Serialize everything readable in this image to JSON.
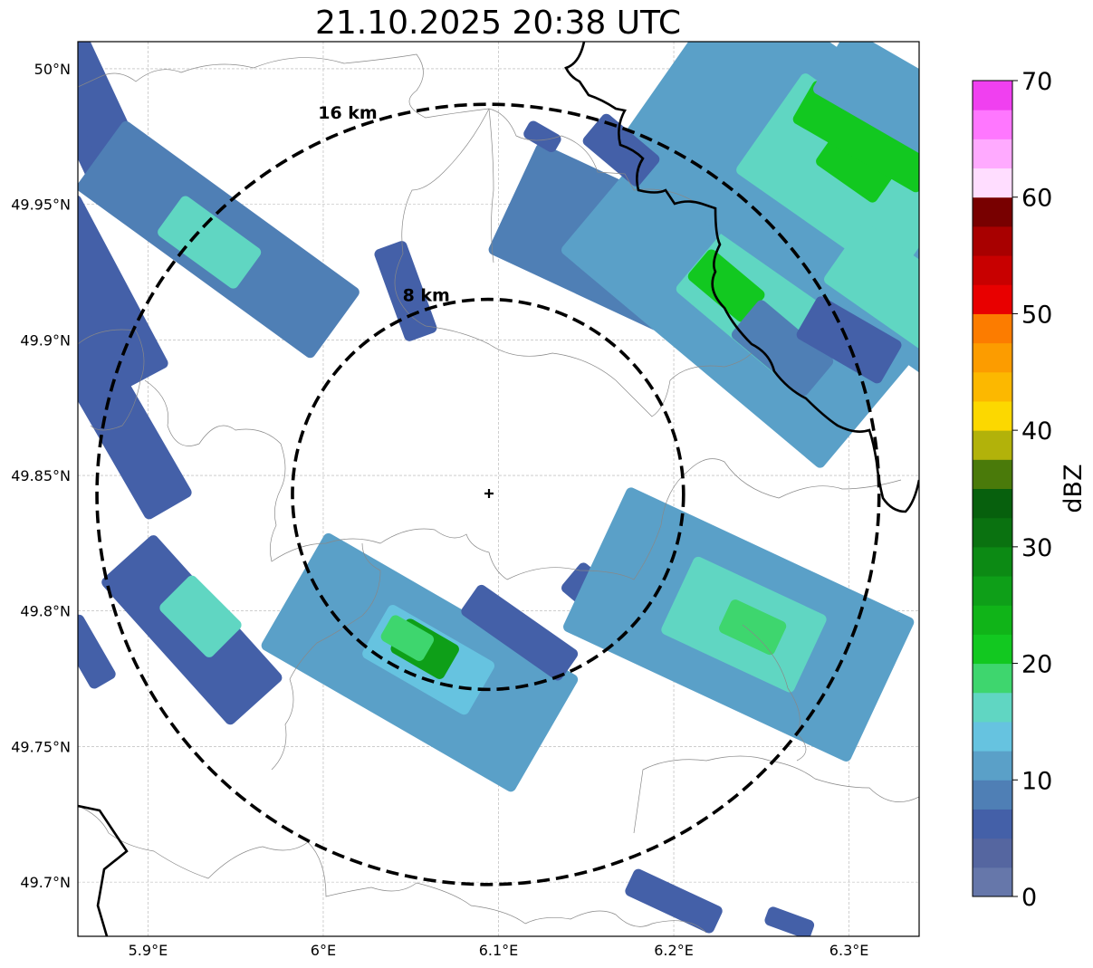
{
  "title": "21.10.2025 20:38 UTC",
  "map": {
    "lon_range": [
      5.86,
      6.34
    ],
    "lat_range": [
      49.68,
      50.01
    ],
    "lon_ticks": [
      {
        "value": 5.9,
        "label": "5.9°E"
      },
      {
        "value": 6.0,
        "label": "6°E"
      },
      {
        "value": 6.1,
        "label": "6.1°E"
      },
      {
        "value": 6.2,
        "label": "6.2°E"
      },
      {
        "value": 6.3,
        "label": "6.3°E"
      }
    ],
    "lat_ticks": [
      {
        "value": 50.0,
        "label": "50°N"
      },
      {
        "value": 49.95,
        "label": "49.95°N"
      },
      {
        "value": 49.9,
        "label": "49.9°N"
      },
      {
        "value": 49.85,
        "label": "49.85°N"
      },
      {
        "value": 49.8,
        "label": "49.8°N"
      },
      {
        "value": 49.75,
        "label": "49.75°N"
      },
      {
        "value": 49.7,
        "label": "49.7°N"
      }
    ],
    "center": {
      "lon": 6.094,
      "lat": 49.843
    },
    "grid": true,
    "rings": [
      {
        "radius_km": 8,
        "label": "8 km"
      },
      {
        "radius_km": 16,
        "label": "16 km"
      }
    ]
  },
  "colorbar": {
    "label": "dBZ",
    "min": 0,
    "max": 70,
    "ticks": [
      {
        "value": 0,
        "label": "0"
      },
      {
        "value": 10,
        "label": "10"
      },
      {
        "value": 20,
        "label": "20"
      },
      {
        "value": 30,
        "label": "30"
      },
      {
        "value": 40,
        "label": "40"
      },
      {
        "value": 50,
        "label": "50"
      },
      {
        "value": 60,
        "label": "60"
      },
      {
        "value": 70,
        "label": "70"
      }
    ],
    "colors": [
      "#6677aa",
      "#5566a0",
      "#4460a8",
      "#4f7fb5",
      "#5aa0c8",
      "#66c3e0",
      "#60d6c2",
      "#3ed66e",
      "#12c820",
      "#10b418",
      "#0e9f18",
      "#0c8a14",
      "#0a7210",
      "#07600d",
      "#4a7a0a",
      "#b2b20a",
      "#fcd800",
      "#fcb800",
      "#fc9c00",
      "#fc7c00",
      "#e80000",
      "#c80000",
      "#a80000",
      "#780000",
      "#ffddff",
      "#ffaaff",
      "#ff77ff",
      "#f040f0"
    ]
  },
  "echo_cells": [
    {
      "lon": 5.866,
      "lat": 49.985,
      "len_km": 6.5,
      "wid_km": 2.5,
      "angle": -65,
      "dbz": 5
    },
    {
      "lon": 5.883,
      "lat": 49.965,
      "len_km": 3.5,
      "wid_km": 1.6,
      "angle": -70,
      "dbz": 5
    },
    {
      "lon": 5.868,
      "lat": 49.916,
      "len_km": 8,
      "wid_km": 3,
      "angle": -62,
      "dbz": 5
    },
    {
      "lon": 5.878,
      "lat": 49.877,
      "len_km": 10,
      "wid_km": 2.2,
      "angle": -60,
      "dbz": 5
    },
    {
      "lon": 5.94,
      "lat": 49.937,
      "len_km": 12,
      "wid_km": 3.5,
      "angle": -36,
      "dbz": 8
    },
    {
      "lon": 5.935,
      "lat": 49.936,
      "len_km": 4,
      "wid_km": 2,
      "angle": -36,
      "dbz": 16
    },
    {
      "lon": 6.047,
      "lat": 49.918,
      "len_km": 4,
      "wid_km": 1.4,
      "angle": -70,
      "dbz": 5
    },
    {
      "lon": 5.925,
      "lat": 49.793,
      "len_km": 8,
      "wid_km": 3,
      "angle": -48,
      "dbz": 7
    },
    {
      "lon": 5.93,
      "lat": 49.798,
      "len_km": 3,
      "wid_km": 2,
      "angle": -45,
      "dbz": 16
    },
    {
      "lon": 5.865,
      "lat": 49.785,
      "len_km": 3,
      "wid_km": 1.2,
      "angle": -60,
      "dbz": 5
    },
    {
      "lon": 6.055,
      "lat": 49.781,
      "len_km": 12,
      "wid_km": 5.5,
      "angle": -30,
      "dbz": 10
    },
    {
      "lon": 6.06,
      "lat": 49.782,
      "len_km": 5,
      "wid_km": 2.5,
      "angle": -30,
      "dbz": 14
    },
    {
      "lon": 6.058,
      "lat": 49.786,
      "len_km": 2.5,
      "wid_km": 1.6,
      "angle": -30,
      "dbz": 27
    },
    {
      "lon": 6.048,
      "lat": 49.79,
      "len_km": 2,
      "wid_km": 1.2,
      "angle": -30,
      "dbz": 18
    },
    {
      "lon": 6.112,
      "lat": 49.792,
      "len_km": 5,
      "wid_km": 1.5,
      "angle": -35,
      "dbz": 6
    },
    {
      "lon": 6.168,
      "lat": 49.799,
      "len_km": 5,
      "wid_km": 1.5,
      "angle": -40,
      "dbz": 6
    },
    {
      "lon": 6.237,
      "lat": 49.795,
      "len_km": 13,
      "wid_km": 6.5,
      "angle": -25,
      "dbz": 10
    },
    {
      "lon": 6.24,
      "lat": 49.795,
      "len_km": 6,
      "wid_km": 3.5,
      "angle": -25,
      "dbz": 15
    },
    {
      "lon": 6.245,
      "lat": 49.794,
      "len_km": 2.5,
      "wid_km": 1.5,
      "angle": -25,
      "dbz": 19
    },
    {
      "lon": 6.2,
      "lat": 49.693,
      "len_km": 4,
      "wid_km": 1.2,
      "angle": -25,
      "dbz": 7
    },
    {
      "lon": 6.266,
      "lat": 49.685,
      "len_km": 2,
      "wid_km": 0.8,
      "angle": -20,
      "dbz": 5
    },
    {
      "lon": 6.19,
      "lat": 49.928,
      "len_km": 13,
      "wid_km": 5,
      "angle": -25,
      "dbz": 8
    },
    {
      "lon": 6.175,
      "lat": 49.93,
      "len_km": 4,
      "wid_km": 2,
      "angle": -25,
      "dbz": 16
    },
    {
      "lon": 6.245,
      "lat": 49.92,
      "len_km": 14,
      "wid_km": 8,
      "angle": -40,
      "dbz": 11
    },
    {
      "lon": 6.25,
      "lat": 49.915,
      "len_km": 6,
      "wid_km": 4,
      "angle": -40,
      "dbz": 16
    },
    {
      "lon": 6.23,
      "lat": 49.92,
      "len_km": 3,
      "wid_km": 1.6,
      "angle": -40,
      "dbz": 20
    },
    {
      "lon": 6.29,
      "lat": 49.96,
      "len_km": 16,
      "wid_km": 9,
      "angle": -35,
      "dbz": 10
    },
    {
      "lon": 6.3,
      "lat": 49.96,
      "len_km": 8,
      "wid_km": 5,
      "angle": -35,
      "dbz": 15
    },
    {
      "lon": 6.305,
      "lat": 49.965,
      "len_km": 3,
      "wid_km": 2,
      "angle": -35,
      "dbz": 22
    },
    {
      "lon": 6.31,
      "lat": 49.975,
      "len_km": 6,
      "wid_km": 2,
      "angle": -30,
      "dbz": 20
    },
    {
      "lon": 6.325,
      "lat": 49.92,
      "len_km": 5,
      "wid_km": 3,
      "angle": -35,
      "dbz": 15
    },
    {
      "lon": 6.262,
      "lat": 49.897,
      "len_km": 4,
      "wid_km": 2,
      "angle": -40,
      "dbz": 8
    },
    {
      "lon": 6.3,
      "lat": 49.9,
      "len_km": 4,
      "wid_km": 2,
      "angle": -30,
      "dbz": 5
    },
    {
      "lon": 6.17,
      "lat": 49.97,
      "len_km": 3,
      "wid_km": 1.6,
      "angle": -40,
      "dbz": 6
    },
    {
      "lon": 6.125,
      "lat": 49.975,
      "len_km": 1.5,
      "wid_km": 0.8,
      "angle": -30,
      "dbz": 6
    },
    {
      "lon": 6.325,
      "lat": 49.99,
      "len_km": 6,
      "wid_km": 3,
      "angle": -30,
      "dbz": 12
    }
  ]
}
